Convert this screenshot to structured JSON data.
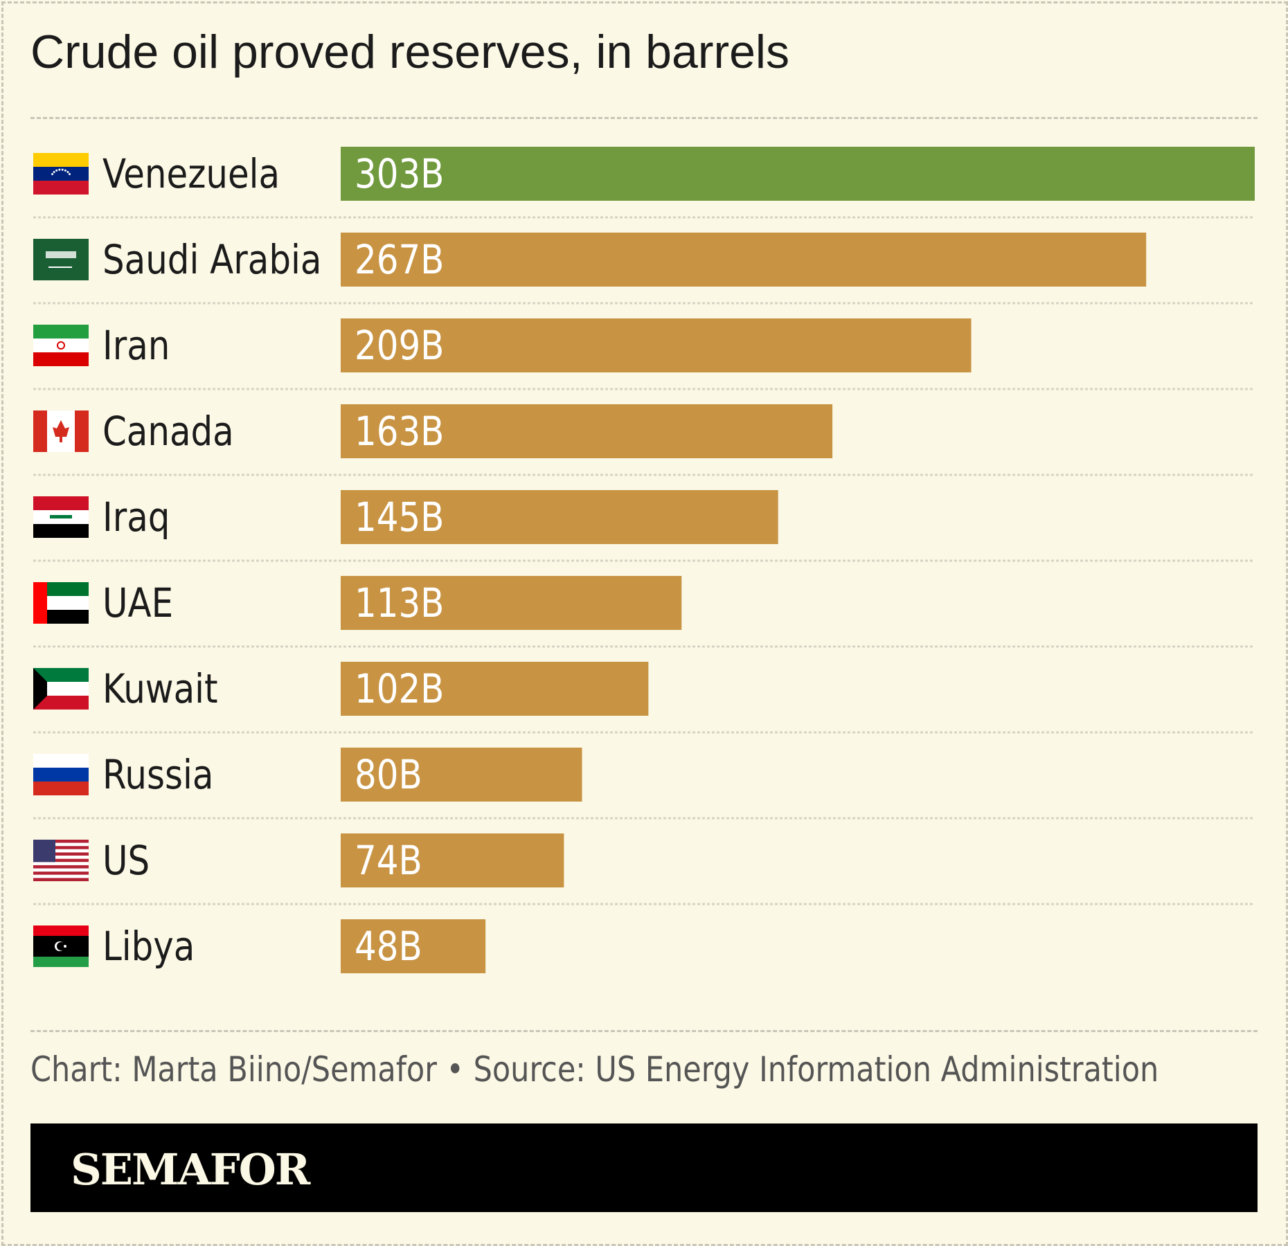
{
  "chart_data": {
    "type": "bar",
    "orientation": "horizontal",
    "title": "Crude oil proved reserves, in barrels",
    "categories": [
      "Venezuela",
      "Saudi Arabia",
      "Iran",
      "Canada",
      "Iraq",
      "UAE",
      "Kuwait",
      "Russia",
      "US",
      "Libya"
    ],
    "values": [
      303,
      267,
      209,
      163,
      145,
      113,
      102,
      80,
      74,
      48
    ],
    "labels": [
      "303B",
      "267B",
      "209B",
      "163B",
      "145B",
      "113B",
      "102B",
      "80B",
      "74B",
      "48B"
    ],
    "unit": "billion barrels",
    "xlim": [
      0,
      303
    ],
    "highlight_color": "#719a3e",
    "bar_color": "#c89444",
    "grid": false
  },
  "footer": {
    "credit": "Chart: Marta Biino/Semafor • Source: US Energy Information Administration",
    "brand": "SEMAFOR"
  }
}
